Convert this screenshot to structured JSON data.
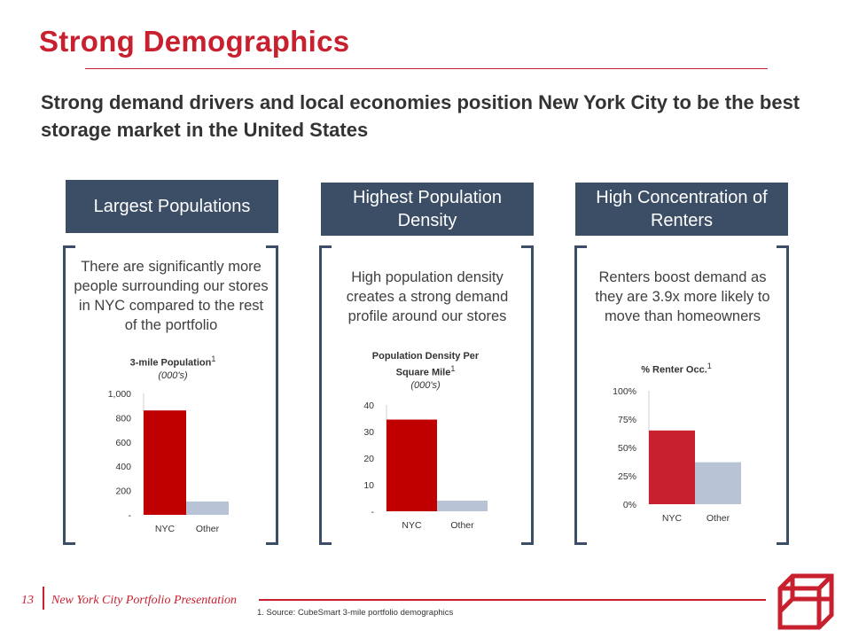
{
  "title": "Strong Demographics",
  "subtitle": "Strong demand drivers and local economies position New York City to be the best storage market in the United States",
  "colors": {
    "accent": "#c8202f",
    "header_bg": "#3c4d66",
    "nyc_bar": "#c00000",
    "nyc_bar_alt": "#c8202f",
    "other_bar": "#b8c4d6"
  },
  "columns": [
    {
      "header": "Largest Populations",
      "description": "There are significantly more people surrounding our stores in NYC compared to the rest of the portfolio"
    },
    {
      "header": "Highest Population Density",
      "description": "High population density creates a strong demand profile around our stores"
    },
    {
      "header": "High Concentration of Renters",
      "description": "Renters boost demand as they are 3.9x more likely to move than homeowners"
    }
  ],
  "chart_data": [
    {
      "type": "bar",
      "title": "3-mile Population",
      "title_sup": "1",
      "subtitle": "(000's)",
      "categories": [
        "NYC",
        "Other"
      ],
      "values": [
        860,
        110
      ],
      "ylim": [
        0,
        1000
      ],
      "yticks": [
        0,
        200,
        400,
        600,
        800,
        1000
      ],
      "ytick_labels": [
        "-",
        "200",
        "400",
        "600",
        "800",
        "1,000"
      ]
    },
    {
      "type": "bar",
      "title": "Population Density Per Square Mile",
      "title_sup": "1",
      "subtitle": "(000's)",
      "categories": [
        "NYC",
        "Other"
      ],
      "values": [
        34.5,
        4
      ],
      "ylim": [
        0,
        40
      ],
      "yticks": [
        0,
        10,
        20,
        30,
        40
      ],
      "ytick_labels": [
        "-",
        "10",
        "20",
        "30",
        "40"
      ]
    },
    {
      "type": "bar",
      "title": "% Renter Occ.",
      "title_sup": "1",
      "subtitle": "",
      "categories": [
        "NYC",
        "Other"
      ],
      "values": [
        65,
        37
      ],
      "ylim": [
        0,
        100
      ],
      "yticks": [
        0,
        25,
        50,
        75,
        100
      ],
      "ytick_labels": [
        "0%",
        "25%",
        "50%",
        "75%",
        "100%"
      ]
    }
  ],
  "footer": {
    "page_number": "13",
    "presentation": "New York City Portfolio Presentation",
    "footnote": "1.    Source: CubeSmart 3-mile portfolio demographics"
  }
}
